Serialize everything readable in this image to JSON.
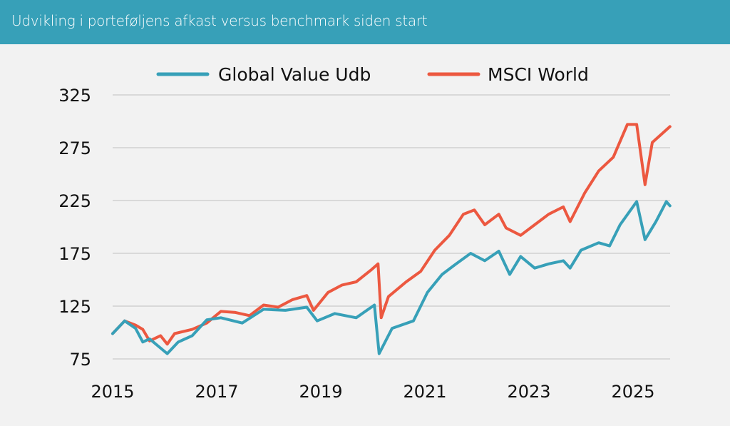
{
  "header": {
    "title": "Udvikling i porteføljens afkast versus benchmark siden start"
  },
  "colors": {
    "header_bg": "#37a0b8",
    "background": "#f2f2f2",
    "grid": "#d9d9d9"
  },
  "chart_data": {
    "type": "line",
    "title": "Udvikling i porteføljens afkast versus benchmark siden start",
    "xlabel": "",
    "ylabel": "",
    "xlim": [
      2015,
      2025.7
    ],
    "ylim": [
      75,
      325
    ],
    "yticks": [
      "75",
      "125",
      "175",
      "225",
      "275",
      "325"
    ],
    "xticks": [
      "2015",
      "2017",
      "2019",
      "2021",
      "2023",
      "2025"
    ],
    "grid": "horizontal",
    "legend_position": "top",
    "series": [
      {
        "name": "Global Value Udb",
        "color": "#37a0b8",
        "x": [
          2015.0,
          2015.23,
          2015.44,
          2015.58,
          2015.71,
          2016.05,
          2016.26,
          2016.53,
          2016.81,
          2017.08,
          2017.49,
          2017.9,
          2018.32,
          2018.73,
          2018.93,
          2019.27,
          2019.68,
          2020.03,
          2020.12,
          2020.37,
          2020.78,
          2021.05,
          2021.33,
          2021.6,
          2021.88,
          2022.15,
          2022.42,
          2022.63,
          2022.84,
          2023.11,
          2023.38,
          2023.66,
          2023.79,
          2024.0,
          2024.34,
          2024.55,
          2024.75,
          2025.07,
          2025.23,
          2025.44,
          2025.64,
          2025.71
        ],
        "y": [
          99,
          111,
          104,
          91,
          94,
          80,
          91,
          97,
          112,
          114,
          109,
          122,
          121,
          124,
          111,
          118,
          114,
          126,
          80,
          104,
          111,
          138,
          155,
          165,
          175,
          168,
          177,
          155,
          172,
          161,
          165,
          168,
          161,
          178,
          185,
          182,
          202,
          224,
          188,
          205,
          224,
          220
        ]
      },
      {
        "name": "MSCI World",
        "color": "#ec5840",
        "x": [
          2015.0,
          2015.23,
          2015.44,
          2015.58,
          2015.71,
          2015.92,
          2016.05,
          2016.19,
          2016.53,
          2016.81,
          2017.08,
          2017.36,
          2017.63,
          2017.9,
          2018.18,
          2018.45,
          2018.73,
          2018.86,
          2019.14,
          2019.41,
          2019.68,
          2019.96,
          2020.1,
          2020.16,
          2020.3,
          2020.64,
          2020.92,
          2021.19,
          2021.47,
          2021.74,
          2021.95,
          2022.15,
          2022.42,
          2022.56,
          2022.84,
          2023.11,
          2023.38,
          2023.66,
          2023.79,
          2024.07,
          2024.34,
          2024.62,
          2024.89,
          2025.07,
          2025.23,
          2025.37,
          2025.71
        ],
        "y": [
          99,
          111,
          107,
          103,
          92,
          97,
          89,
          99,
          103,
          109,
          120,
          119,
          116,
          126,
          124,
          131,
          135,
          121,
          138,
          145,
          148,
          159,
          165,
          114,
          134,
          148,
          158,
          178,
          192,
          212,
          216,
          202,
          212,
          199,
          192,
          202,
          212,
          219,
          205,
          232,
          253,
          266,
          297,
          297,
          240,
          280,
          295
        ]
      }
    ]
  }
}
